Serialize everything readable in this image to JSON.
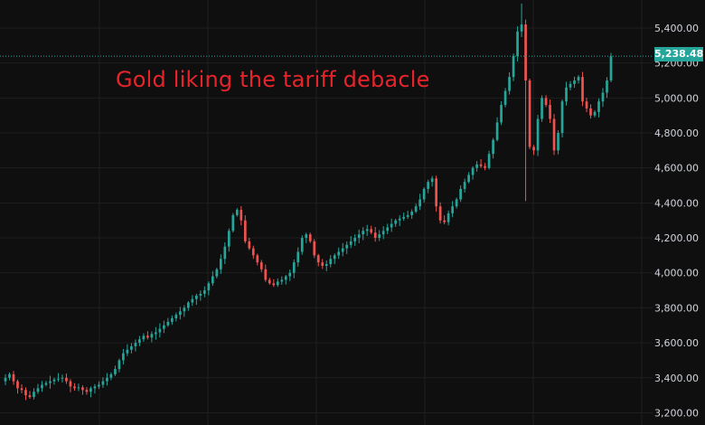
{
  "annotation": "Gold liking the tariff debacle",
  "last_price_label": "5,238.48",
  "colors": {
    "background": "#0f0f0f",
    "up": "#26a69a",
    "down": "#ef5350",
    "grid": "#1f1f1f",
    "annotation": "#e8242b"
  },
  "chart_data": {
    "type": "candlestick",
    "title": "",
    "xlabel": "",
    "ylabel": "",
    "ylim": [
      3130,
      5560
    ],
    "yticks": [
      {
        "value": 3200,
        "label": "3,200.00"
      },
      {
        "value": 3400,
        "label": "3,400.00"
      },
      {
        "value": 3600,
        "label": "3,600.00"
      },
      {
        "value": 3800,
        "label": "3,800.00"
      },
      {
        "value": 4000,
        "label": "4,000.00"
      },
      {
        "value": 4200,
        "label": "4,200.00"
      },
      {
        "value": 4400,
        "label": "4,400.00"
      },
      {
        "value": 4600,
        "label": "4,600.00"
      },
      {
        "value": 4800,
        "label": "4,800.00"
      },
      {
        "value": 5000,
        "label": "5,000.00"
      },
      {
        "value": 5200,
        "label": "5,200.00"
      },
      {
        "value": 5400,
        "label": "5,400.00"
      }
    ],
    "last_price": 5238.48,
    "grid": true,
    "closes": [
      3400,
      3420,
      3380,
      3340,
      3330,
      3300,
      3290,
      3320,
      3340,
      3360,
      3370,
      3380,
      3390,
      3395,
      3400,
      3380,
      3350,
      3340,
      3345,
      3330,
      3320,
      3340,
      3350,
      3360,
      3380,
      3400,
      3420,
      3450,
      3500,
      3540,
      3560,
      3580,
      3600,
      3620,
      3640,
      3630,
      3650,
      3660,
      3680,
      3700,
      3720,
      3740,
      3760,
      3780,
      3800,
      3830,
      3850,
      3870,
      3880,
      3900,
      3940,
      3980,
      4020,
      4080,
      4150,
      4240,
      4330,
      4360,
      4300,
      4180,
      4140,
      4100,
      4060,
      4020,
      3960,
      3940,
      3930,
      3950,
      3960,
      3980,
      4000,
      4060,
      4120,
      4200,
      4220,
      4180,
      4100,
      4060,
      4040,
      4050,
      4080,
      4100,
      4120,
      4140,
      4160,
      4180,
      4200,
      4220,
      4240,
      4250,
      4230,
      4200,
      4220,
      4240,
      4260,
      4280,
      4300,
      4310,
      4320,
      4330,
      4350,
      4380,
      4420,
      4480,
      4520,
      4540,
      4380,
      4300,
      4290,
      4340,
      4380,
      4420,
      4480,
      4520,
      4560,
      4600,
      4620,
      4610,
      4600,
      4680,
      4760,
      4860,
      4960,
      5040,
      5120,
      5240,
      5380,
      5420,
      5100,
      4720,
      4700,
      4880,
      5000,
      4960,
      4880,
      4700,
      4800,
      4980,
      5060,
      5080,
      5100,
      5120,
      4980,
      4940,
      4900,
      4920,
      4980,
      5030,
      5100,
      5238.48
    ],
    "series": [
      {
        "name": "",
        "values": [
          3400,
          3420,
          3380,
          3340,
          3330,
          3300,
          3290,
          3320,
          3340,
          3360,
          3370,
          3380,
          3390,
          3395,
          3400,
          3380,
          3350,
          3340,
          3345,
          3330,
          3320,
          3340,
          3350,
          3360,
          3380,
          3400,
          3420,
          3450,
          3500,
          3540,
          3560,
          3580,
          3600,
          3620,
          3640,
          3630,
          3650,
          3660,
          3680,
          3700,
          3720,
          3740,
          3760,
          3780,
          3800,
          3830,
          3850,
          3870,
          3880,
          3900,
          3940,
          3980,
          4020,
          4080,
          4150,
          4240,
          4330,
          4360,
          4300,
          4180,
          4140,
          4100,
          4060,
          4020,
          3960,
          3940,
          3930,
          3950,
          3960,
          3980,
          4000,
          4060,
          4120,
          4200,
          4220,
          4180,
          4100,
          4060,
          4040,
          4050,
          4080,
          4100,
          4120,
          4140,
          4160,
          4180,
          4200,
          4220,
          4240,
          4250,
          4230,
          4200,
          4220,
          4240,
          4260,
          4280,
          4300,
          4310,
          4320,
          4330,
          4350,
          4380,
          4420,
          4480,
          4520,
          4540,
          4380,
          4300,
          4290,
          4340,
          4380,
          4420,
          4480,
          4520,
          4560,
          4600,
          4620,
          4610,
          4600,
          4680,
          4760,
          4860,
          4960,
          5040,
          5120,
          5240,
          5380,
          5420,
          5100,
          4720,
          4700,
          4880,
          5000,
          4960,
          4880,
          4700,
          4800,
          4980,
          5060,
          5080,
          5100,
          5120,
          4980,
          4940,
          4900,
          4920,
          4980,
          5030,
          5100,
          5238.48
        ]
      }
    ]
  }
}
